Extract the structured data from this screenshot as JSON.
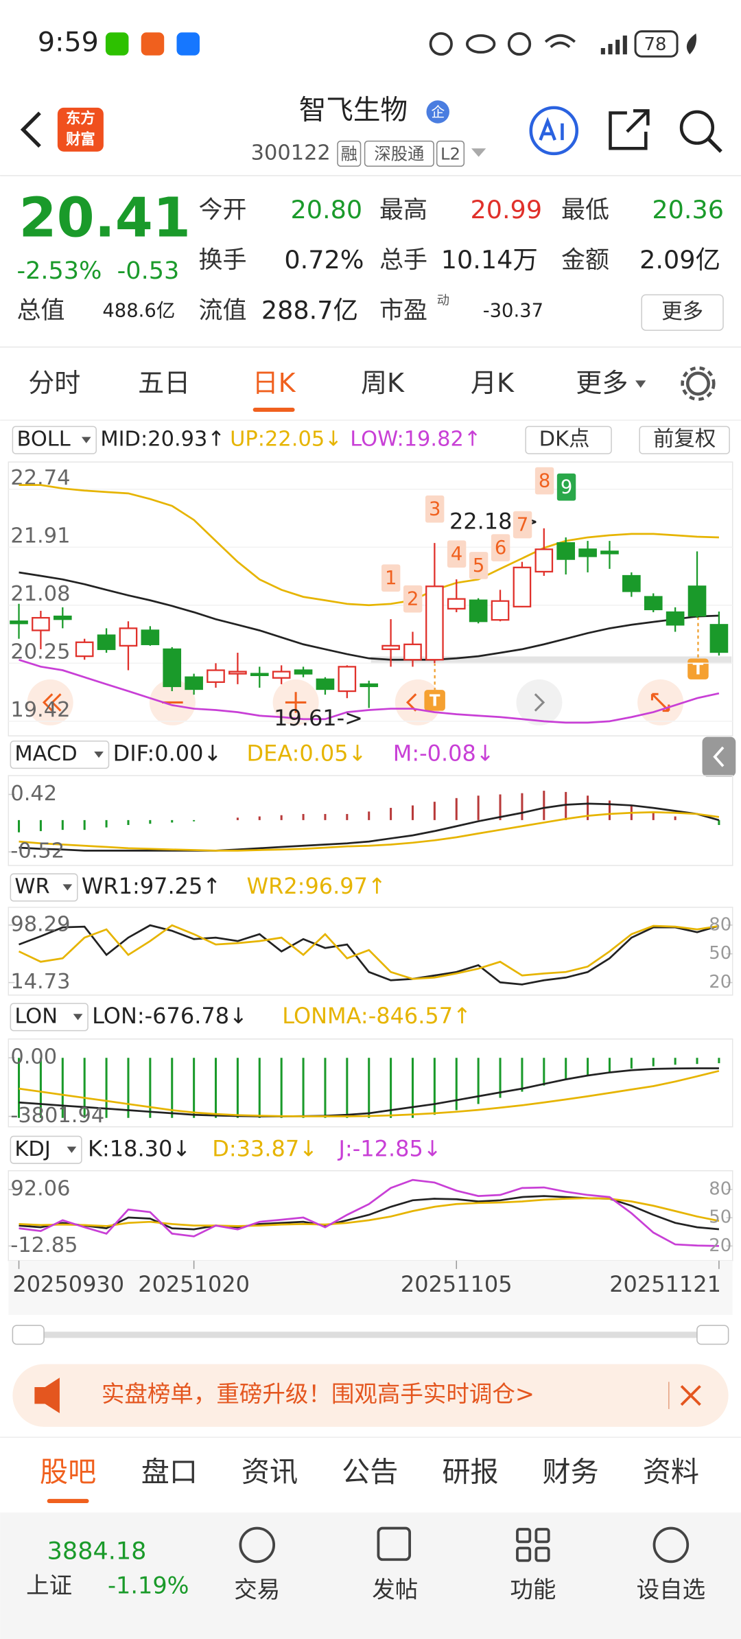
{
  "status": {
    "time": "9:59",
    "battery": "78"
  },
  "logo": [
    "东方",
    "财富"
  ],
  "header": {
    "title": "智飞生物",
    "badge": "企",
    "code": "300122",
    "tags": [
      "融",
      "深股通",
      "L2"
    ]
  },
  "quote": {
    "price": "20.41",
    "change_pct": "-2.53%",
    "change": "-0.53",
    "fields": [
      [
        "今开",
        "20.80"
      ],
      [
        "最高",
        "20.99"
      ],
      [
        "最低",
        "20.36"
      ],
      [
        "换手",
        "0.72%"
      ],
      [
        "总手",
        "10.14万"
      ],
      [
        "金额",
        "2.09亿"
      ],
      [
        "总值",
        "488.6亿"
      ],
      [
        "流值",
        "288.7亿"
      ],
      [
        "市盈",
        "-30.37"
      ]
    ],
    "pe_note": "动",
    "more": "更多"
  },
  "tabs": [
    "分时",
    "五日",
    "日K",
    "周K",
    "月K",
    "更多"
  ],
  "kline": {
    "type": "candlestick",
    "indicator": "BOLL",
    "buttons": [
      "DK点",
      "前复权"
    ],
    "up_color": "#e0302a",
    "down_color": "#1a9a2a",
    "ylim": [
      19.42,
      22.74
    ],
    "yticks": [
      22.74,
      21.91,
      21.08,
      20.25,
      19.42
    ],
    "dates": [
      "20250930",
      null,
      null,
      null,
      null,
      null,
      null,
      null,
      "20251020",
      null,
      null,
      null,
      null,
      null,
      null,
      null,
      null,
      null,
      null,
      null,
      "20251105",
      null,
      null,
      null,
      null,
      null,
      null,
      null,
      null,
      null,
      null,
      null,
      "20251121"
    ],
    "candles": [
      {
        "open": 20.85,
        "high": 21.1,
        "low": 20.6,
        "close": 20.82
      },
      {
        "open": 20.72,
        "high": 21.0,
        "low": 20.45,
        "close": 20.9
      },
      {
        "open": 20.92,
        "high": 21.05,
        "low": 20.75,
        "close": 20.88
      },
      {
        "open": 20.35,
        "high": 20.6,
        "low": 20.3,
        "close": 20.55
      },
      {
        "open": 20.65,
        "high": 20.75,
        "low": 20.4,
        "close": 20.45
      },
      {
        "open": 20.5,
        "high": 20.85,
        "low": 20.15,
        "close": 20.75
      },
      {
        "open": 20.72,
        "high": 20.78,
        "low": 20.5,
        "close": 20.52
      },
      {
        "open": 20.45,
        "high": 20.48,
        "low": 19.85,
        "close": 19.92
      },
      {
        "open": 20.05,
        "high": 20.1,
        "low": 19.8,
        "close": 19.88
      },
      {
        "open": 19.98,
        "high": 20.25,
        "low": 19.9,
        "close": 20.15
      },
      {
        "open": 20.1,
        "high": 20.4,
        "low": 19.95,
        "close": 20.13
      },
      {
        "open": 20.1,
        "high": 20.2,
        "low": 19.9,
        "close": 20.08
      },
      {
        "open": 20.04,
        "high": 20.22,
        "low": 19.95,
        "close": 20.13
      },
      {
        "open": 20.15,
        "high": 20.2,
        "low": 20.05,
        "close": 20.1
      },
      {
        "open": 20.02,
        "high": 20.05,
        "low": 19.8,
        "close": 19.88
      },
      {
        "open": 19.85,
        "high": 20.22,
        "low": 19.75,
        "close": 20.2
      },
      {
        "open": 19.95,
        "high": 20.0,
        "low": 19.61,
        "close": 19.92
      },
      {
        "open": 20.45,
        "high": 20.88,
        "low": 20.2,
        "close": 20.5
      },
      {
        "open": 20.3,
        "high": 20.7,
        "low": 20.2,
        "close": 20.52
      },
      {
        "open": 20.3,
        "high": 21.97,
        "low": 20.25,
        "close": 21.35
      },
      {
        "open": 21.03,
        "high": 21.45,
        "low": 20.98,
        "close": 21.17
      },
      {
        "open": 21.15,
        "high": 21.18,
        "low": 20.82,
        "close": 20.85
      },
      {
        "open": 20.87,
        "high": 21.3,
        "low": 20.85,
        "close": 21.14
      },
      {
        "open": 21.06,
        "high": 21.7,
        "low": 21.05,
        "close": 21.62
      },
      {
        "open": 21.56,
        "high": 22.18,
        "low": 21.5,
        "close": 21.88
      },
      {
        "open": 21.97,
        "high": 22.05,
        "low": 21.52,
        "close": 21.74
      },
      {
        "open": 21.88,
        "high": 22.0,
        "low": 21.55,
        "close": 21.78
      },
      {
        "open": 21.85,
        "high": 22.0,
        "low": 21.6,
        "close": 21.82
      },
      {
        "open": 21.5,
        "high": 21.55,
        "low": 21.2,
        "close": 21.28
      },
      {
        "open": 21.2,
        "high": 21.25,
        "low": 20.98,
        "close": 21.02
      },
      {
        "open": 20.98,
        "high": 21.05,
        "low": 20.7,
        "close": 20.8
      },
      {
        "open": 21.35,
        "high": 21.85,
        "low": 20.9,
        "close": 20.93
      },
      {
        "open": 20.8,
        "high": 20.99,
        "low": 20.36,
        "close": 20.41
      }
    ],
    "series": [
      {
        "name": "MID:20.93↑",
        "color": "#222222",
        "values": [
          21.55,
          21.5,
          21.45,
          21.38,
          21.3,
          21.22,
          21.15,
          21.07,
          20.98,
          20.88,
          20.8,
          20.72,
          20.62,
          20.52,
          20.45,
          20.38,
          20.32,
          20.3,
          20.3,
          20.3,
          20.32,
          20.35,
          20.4,
          20.45,
          20.52,
          20.6,
          20.68,
          20.75,
          20.8,
          20.84,
          20.88,
          20.92,
          20.93
        ]
      },
      {
        "name": "UP:22.05↓",
        "color": "#e6b400",
        "values": [
          22.8,
          22.8,
          22.75,
          22.72,
          22.7,
          22.68,
          22.6,
          22.5,
          22.3,
          22.0,
          21.7,
          21.45,
          21.3,
          21.2,
          21.15,
          21.1,
          21.08,
          21.1,
          21.15,
          21.3,
          21.4,
          21.45,
          21.6,
          21.75,
          21.9,
          22.0,
          22.05,
          22.08,
          22.1,
          22.1,
          22.08,
          22.06,
          22.05
        ]
      },
      {
        "name": "LOW:19.82↑",
        "color": "#c83fd6",
        "values": [
          20.3,
          20.2,
          20.15,
          20.05,
          19.95,
          19.85,
          19.75,
          19.65,
          19.6,
          19.58,
          19.55,
          19.5,
          19.48,
          19.45,
          19.45,
          19.55,
          19.58,
          19.6,
          19.6,
          19.55,
          19.52,
          19.5,
          19.48,
          19.45,
          19.42,
          19.4,
          19.4,
          19.42,
          19.48,
          19.55,
          19.65,
          19.75,
          19.82
        ]
      }
    ],
    "annotations": [
      "22.18->",
      "19.61->"
    ],
    "markers": [
      "1",
      "2",
      "3",
      "4",
      "5",
      "6",
      "7",
      "8",
      "9"
    ],
    "t_marks": [
      "T",
      "T"
    ]
  },
  "indicators": [
    {
      "name": "MACD",
      "ylim": [
        -0.52,
        0.42
      ],
      "yticks": [
        0.42,
        -0.52
      ],
      "bars": [
        -0.2,
        -0.18,
        -0.16,
        -0.16,
        -0.12,
        -0.08,
        -0.06,
        -0.04,
        -0.02,
        0.0,
        0.04,
        0.06,
        0.08,
        0.1,
        0.1,
        0.1,
        0.14,
        0.2,
        0.24,
        0.3,
        0.36,
        0.4,
        0.42,
        0.44,
        0.48,
        0.46,
        0.4,
        0.32,
        0.24,
        0.14,
        0.06,
        0.0,
        -0.08
      ],
      "series": [
        {
          "name": "DIF:0.00↓",
          "color": "#222222",
          "values": [
            -0.45,
            -0.47,
            -0.48,
            -0.5,
            -0.5,
            -0.5,
            -0.5,
            -0.5,
            -0.5,
            -0.5,
            -0.48,
            -0.46,
            -0.44,
            -0.42,
            -0.4,
            -0.38,
            -0.35,
            -0.3,
            -0.25,
            -0.18,
            -0.1,
            -0.02,
            0.05,
            0.12,
            0.2,
            0.25,
            0.27,
            0.26,
            0.24,
            0.2,
            0.15,
            0.1,
            0.0
          ]
        },
        {
          "name": "DEA:0.05↓",
          "color": "#e6b400",
          "values": [
            -0.35,
            -0.38,
            -0.4,
            -0.42,
            -0.44,
            -0.46,
            -0.47,
            -0.48,
            -0.49,
            -0.5,
            -0.5,
            -0.49,
            -0.48,
            -0.47,
            -0.45,
            -0.43,
            -0.42,
            -0.4,
            -0.37,
            -0.33,
            -0.28,
            -0.22,
            -0.16,
            -0.1,
            -0.04,
            0.02,
            0.07,
            0.1,
            0.12,
            0.13,
            0.12,
            0.1,
            0.05
          ]
        },
        {
          "name": "M:-0.08↓",
          "color": "#c83fd6",
          "values": []
        }
      ]
    },
    {
      "name": "WR",
      "ylim": [
        14.73,
        98.29
      ],
      "yticks": [
        98.29,
        14.73
      ],
      "y2lim": [
        20,
        80
      ],
      "y2ticks": [
        80,
        50,
        20
      ],
      "series": [
        {
          "name": "WR1:97.25↑",
          "color": "#222222",
          "values": [
            70,
            82,
            95,
            96,
            55,
            80,
            98,
            90,
            78,
            80,
            75,
            85,
            60,
            78,
            65,
            70,
            30,
            18,
            20,
            25,
            30,
            40,
            15,
            12,
            18,
            22,
            30,
            50,
            80,
            95,
            95,
            88,
            97.25
          ]
        },
        {
          "name": "WR2:96.97↑",
          "color": "#e6b400",
          "values": [
            60,
            45,
            50,
            80,
            92,
            55,
            75,
            98,
            85,
            70,
            72,
            75,
            80,
            55,
            85,
            50,
            62,
            30,
            20,
            22,
            28,
            35,
            45,
            25,
            28,
            30,
            38,
            60,
            85,
            97,
            96,
            92,
            96.97
          ]
        }
      ]
    },
    {
      "name": "LON",
      "ylim": [
        -3801.94,
        0
      ],
      "yticks": [
        {
          "value": 0,
          "label": "0.00"
        },
        -3801.94
      ],
      "bars": [
        -3900,
        -3900,
        -3900,
        -3900,
        -3900,
        -3900,
        -3900,
        -3900,
        -3900,
        -3900,
        -3900,
        -3900,
        -3900,
        -3900,
        -3900,
        -3900,
        -3900,
        -3900,
        -3900,
        -3700,
        -3400,
        -3000,
        -2600,
        -2200,
        -1800,
        -1400,
        -1100,
        -900,
        -700,
        -550,
        -450,
        -400,
        -350
      ],
      "series": [
        {
          "name": "LON:-676.78↓",
          "color": "#222222",
          "values": [
            -2900,
            -3000,
            -3100,
            -3200,
            -3300,
            -3400,
            -3500,
            -3600,
            -3700,
            -3750,
            -3780,
            -3800,
            -3800,
            -3790,
            -3770,
            -3700,
            -3600,
            -3400,
            -3200,
            -3000,
            -2750,
            -2500,
            -2250,
            -2000,
            -1700,
            -1400,
            -1150,
            -950,
            -800,
            -720,
            -690,
            -680,
            -676.78
          ]
        },
        {
          "name": "LONMA:-846.57↑",
          "color": "#e6b400",
          "values": [
            -2000,
            -2200,
            -2400,
            -2600,
            -2800,
            -3000,
            -3200,
            -3400,
            -3550,
            -3650,
            -3720,
            -3760,
            -3790,
            -3800,
            -3800,
            -3800,
            -3780,
            -3740,
            -3680,
            -3600,
            -3500,
            -3380,
            -3240,
            -3080,
            -2900,
            -2700,
            -2500,
            -2280,
            -2060,
            -1840,
            -1540,
            -1200,
            -846.57
          ]
        }
      ]
    },
    {
      "name": "KDJ",
      "ylim": [
        -12.85,
        92.06
      ],
      "yticks": [
        92.06,
        -12.85
      ],
      "y2lim": [
        20,
        80
      ],
      "y2ticks": [
        80,
        50,
        20
      ],
      "series": [
        {
          "name": "K:18.30↓",
          "color": "#222222",
          "values": [
            25,
            22,
            30,
            25,
            20,
            40,
            38,
            20,
            18,
            25,
            22,
            28,
            30,
            32,
            25,
            35,
            45,
            60,
            72,
            75,
            74,
            70,
            72,
            78,
            80,
            78,
            76,
            75,
            62,
            45,
            30,
            22,
            18.3
          ]
        },
        {
          "name": "D:33.87↓",
          "color": "#e6b400",
          "values": [
            28,
            26,
            27,
            26,
            24,
            30,
            32,
            28,
            25,
            25,
            24,
            25,
            27,
            28,
            27,
            30,
            35,
            42,
            52,
            60,
            65,
            67,
            68,
            70,
            73,
            75,
            76,
            75,
            70,
            62,
            52,
            42,
            33.87
          ]
        },
        {
          "name": "J:-12.85↓",
          "color": "#c83fd6",
          "values": [
            20,
            15,
            35,
            22,
            10,
            55,
            50,
            10,
            5,
            25,
            18,
            32,
            36,
            40,
            22,
            45,
            65,
            95,
            110,
            105,
            90,
            80,
            82,
            95,
            96,
            88,
            82,
            78,
            48,
            12,
            -10,
            -12,
            -12.85
          ]
        }
      ]
    }
  ],
  "banner": {
    "text": "实盘榜单，重磅升级！围观高手实时调仓>"
  },
  "bottom_tabs": [
    "股吧",
    "盘口",
    "资讯",
    "公告",
    "研报",
    "财务",
    "资料"
  ],
  "footer": {
    "index_value": "3884.18",
    "index_name": "上证",
    "index_change": "-1.19%",
    "actions": [
      "交易",
      "发帖",
      "功能",
      "设自选"
    ]
  }
}
